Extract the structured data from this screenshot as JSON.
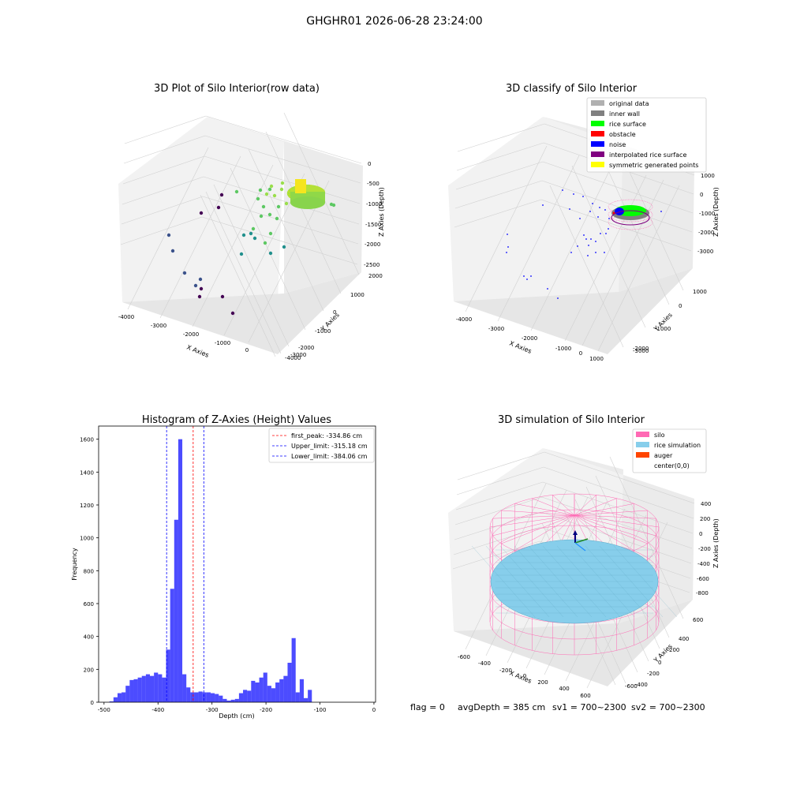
{
  "figure": {
    "suptitle": "GHGHR01 2026-06-28 23:24:00",
    "footer": {
      "flag": "flag = 0",
      "avg": "avgDepth = 385 cm",
      "sv1": "sv1 = 700~2300",
      "sv2": "sv2 = 700~2300"
    }
  },
  "chart_data": [
    {
      "type": "scatter",
      "panel": "top-left",
      "title": "3D Plot of Silo Interior(row data)",
      "xlabel": "X Axies",
      "ylabel": "Y Axies",
      "zlabel": "Z Axies (Depth)",
      "xticks": [
        "-4000",
        "-3000",
        "-2000",
        "-1000",
        "0"
      ],
      "yticks": [
        "2000",
        "1000",
        "0",
        "-1000",
        "-2000",
        "-3000",
        "-4000"
      ],
      "zticks": [
        "0",
        "-500",
        "-1000",
        "-1500",
        "-2000",
        "-2500"
      ],
      "colormap": "viridis",
      "description_series": "raw point cloud; dense ring near x≈-200..400, y≈0..800 at depth ≈ -700..-1000"
    },
    {
      "type": "scatter",
      "panel": "top-right",
      "title": "3D classify of Silo Interior",
      "xlabel": "X Axies",
      "ylabel": "Y Axies",
      "zlabel": "Z Axies (Depth)",
      "xticks": [
        "-4000",
        "-3000",
        "-2000",
        "-1000",
        "0",
        "1000"
      ],
      "yticks": [
        "1000",
        "0",
        "-1000",
        "-2000",
        "-3000"
      ],
      "zticks": [
        "1000",
        "0",
        "-1000",
        "-2000",
        "-3000"
      ],
      "legend_position": "top-right",
      "legend": [
        {
          "label": "original data",
          "color": "#b0b0b0"
        },
        {
          "label": "inner wall",
          "color": "#808080"
        },
        {
          "label": "rice surface",
          "color": "#00ff00"
        },
        {
          "label": "obstacle",
          "color": "#ff0000"
        },
        {
          "label": "noise",
          "color": "#0000ff"
        },
        {
          "label": "interpolated rice surface",
          "color": "#800080"
        },
        {
          "label": "symmetric generated points",
          "color": "#ffff00"
        }
      ]
    },
    {
      "type": "bar",
      "panel": "bottom-left",
      "title": "Histogram of Z-Axies (Height) Values",
      "xlabel": "Depth (cm)",
      "ylabel": "Frequency",
      "xlim": [
        -510,
        3
      ],
      "ylim": [
        0,
        1680
      ],
      "xticks": [
        -500,
        -400,
        -300,
        -200,
        -100,
        0
      ],
      "yticks": [
        0,
        200,
        400,
        600,
        800,
        1000,
        1200,
        1400,
        1600
      ],
      "bin_start": -490,
      "bin_width": 7.5,
      "color": "#0000ff",
      "values": [
        5,
        30,
        55,
        60,
        100,
        135,
        140,
        150,
        160,
        170,
        160,
        180,
        170,
        150,
        320,
        690,
        1110,
        1600,
        170,
        90,
        60,
        60,
        65,
        60,
        60,
        55,
        50,
        40,
        20,
        10,
        15,
        20,
        55,
        75,
        70,
        130,
        120,
        150,
        180,
        100,
        85,
        120,
        140,
        160,
        240,
        390,
        60,
        140,
        25,
        75
      ],
      "lines": [
        {
          "label": "first_peak: -334.86 cm",
          "value": -334.86,
          "color": "#ff0000"
        },
        {
          "label": "Upper_limit: -315.18 cm",
          "value": -315.18,
          "color": "#0000ff"
        },
        {
          "label": "Lower_limit: -384.06 cm",
          "value": -384.06,
          "color": "#0000ff"
        }
      ],
      "legend_position": "top-right"
    },
    {
      "type": "surface",
      "panel": "bottom-right",
      "title": "3D simulation of Silo Interior",
      "xlabel": "X Axies",
      "ylabel": "Y Axies",
      "zlabel": "Z Axies (Depth)",
      "xticks": [
        "-600",
        "-400",
        "-200",
        "0",
        "200",
        "400",
        "600"
      ],
      "yticks": [
        "600",
        "400",
        "200",
        "0",
        "-200",
        "-400",
        "-600"
      ],
      "zticks": [
        "400",
        "200",
        "0",
        "-200",
        "-400",
        "-600",
        "-800"
      ],
      "legend_position": "top-right",
      "legend": [
        {
          "label": "silo",
          "color": "#ff69b4"
        },
        {
          "label": "rice simulation",
          "color": "#87ceeb"
        },
        {
          "label": "auger",
          "color": "#ff4500"
        },
        {
          "label": "center(0,0)",
          "color": ""
        }
      ]
    }
  ]
}
